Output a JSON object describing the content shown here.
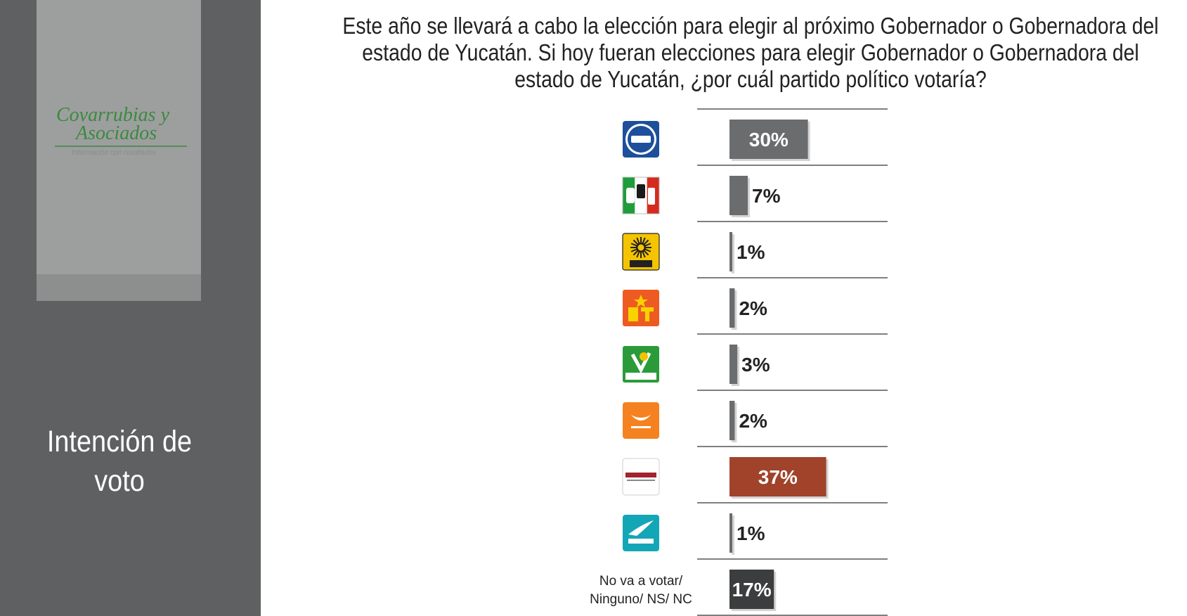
{
  "sidebar": {
    "logo": {
      "line1": "Covarrubias y",
      "line2": "Asociados",
      "tagline": "Información con resultados"
    },
    "title_line1": "Intención de",
    "title_line2": "voto"
  },
  "question": "Este año se llevará a cabo la elección para elegir al próximo Gobernador o Gobernadora del estado de Yucatán. Si hoy fueran elecciones para elegir Gobernador o Gobernadora del estado de Yucatán, ¿por cuál partido político votaría?",
  "colors": {
    "sidebar": "#5f6061",
    "logo_green": "#3a8a3f",
    "bar_gray": "#6b6c6e",
    "bar_morena": "#a0432a",
    "bar_dark": "#3c3d3f"
  },
  "chart_data": {
    "type": "bar",
    "orientation": "horizontal",
    "categories": [
      "PAN",
      "PRI",
      "PRD",
      "PT",
      "VERDE",
      "Movimiento Ciudadano",
      "morena",
      "Nueva Alianza",
      "No va a votar/ Ninguno/ NS/ NC"
    ],
    "category_labels": [
      "",
      "",
      "",
      "",
      "",
      "",
      "",
      "",
      "No va a votar/ Ninguno/ NS/ NC"
    ],
    "category_icons": [
      "pan-logo",
      "pri-logo",
      "prd-logo",
      "pt-logo",
      "verde-logo",
      "movimiento-ciudadano-logo",
      "morena-logo",
      "nueva-alianza-logo",
      ""
    ],
    "values": [
      30,
      7,
      1,
      2,
      3,
      2,
      37,
      1,
      17
    ],
    "value_labels": [
      "30%",
      "7%",
      "1%",
      "2%",
      "3%",
      "2%",
      "37%",
      "1%",
      "17%"
    ],
    "bar_colors": [
      "#6b6c6e",
      "#6b6c6e",
      "#6b6c6e",
      "#6b6c6e",
      "#6b6c6e",
      "#6b6c6e",
      "#a0432a",
      "#6b6c6e",
      "#3c3d3f"
    ],
    "label_inside": [
      true,
      false,
      false,
      false,
      false,
      false,
      true,
      false,
      true
    ],
    "xlim": [
      0,
      37
    ],
    "unit": "%",
    "grid": false,
    "legend": "none"
  }
}
